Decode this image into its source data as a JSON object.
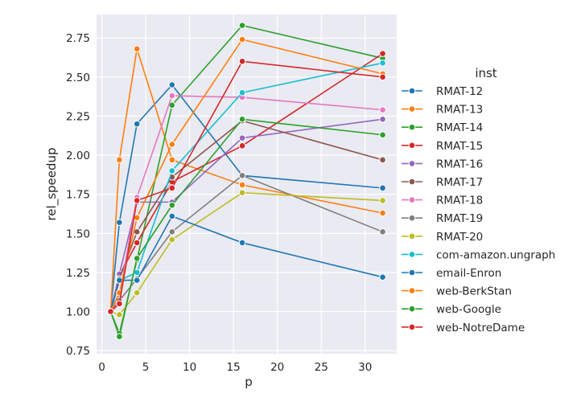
{
  "chart_data": {
    "type": "line",
    "xlabel": "p",
    "ylabel": "rel_speedup",
    "xlim": [
      -0.6,
      33.6
    ],
    "ylim": [
      0.73,
      2.9
    ],
    "xticks": [
      0,
      5,
      10,
      15,
      20,
      25,
      30
    ],
    "yticks": [
      0.75,
      1.0,
      1.25,
      1.5,
      1.75,
      2.0,
      2.25,
      2.5,
      2.75
    ],
    "ytick_labels": [
      "0.75",
      "1.00",
      "1.25",
      "1.50",
      "1.75",
      "2.00",
      "2.25",
      "2.50",
      "2.75"
    ],
    "grid": true,
    "legend_title": "inst",
    "legend_position": "right",
    "x": [
      1,
      2,
      4,
      8,
      16,
      32
    ],
    "series": [
      {
        "name": "RMAT-12",
        "color": "#1f77b4",
        "values": [
          1.0,
          1.57,
          2.2,
          2.45,
          1.87,
          1.79
        ]
      },
      {
        "name": "RMAT-13",
        "color": "#ff7f0e",
        "values": [
          1.0,
          1.97,
          2.68,
          1.97,
          1.81,
          1.63
        ]
      },
      {
        "name": "RMAT-14",
        "color": "#2ca02c",
        "values": [
          1.0,
          0.86,
          1.33,
          2.32,
          2.83,
          2.62
        ]
      },
      {
        "name": "RMAT-15",
        "color": "#d62728",
        "values": [
          1.0,
          1.23,
          1.44,
          1.83,
          2.06,
          2.65
        ]
      },
      {
        "name": "RMAT-16",
        "color": "#9467bd",
        "values": [
          1.0,
          1.24,
          1.7,
          1.7,
          2.11,
          2.23
        ]
      },
      {
        "name": "RMAT-17",
        "color": "#8c564b",
        "values": [
          1.0,
          1.21,
          1.51,
          1.86,
          2.22,
          1.97
        ]
      },
      {
        "name": "RMAT-18",
        "color": "#e377c2",
        "values": [
          1.0,
          1.1,
          1.73,
          2.38,
          2.37,
          2.29
        ]
      },
      {
        "name": "RMAT-19",
        "color": "#7f7f7f",
        "values": [
          1.0,
          1.07,
          1.21,
          1.51,
          1.87,
          1.51
        ]
      },
      {
        "name": "RMAT-20",
        "color": "#bcbd22",
        "values": [
          1.0,
          0.98,
          1.12,
          1.46,
          1.76,
          1.71
        ]
      },
      {
        "name": "com-amazon.ungraph",
        "color": "#17becf",
        "values": [
          1.0,
          1.2,
          1.25,
          1.9,
          2.4,
          2.59
        ]
      },
      {
        "name": "email-Enron",
        "color": "#1f77b4",
        "values": [
          1.0,
          1.2,
          1.2,
          1.61,
          1.44,
          1.22
        ]
      },
      {
        "name": "web-BerkStan",
        "color": "#ff7f0e",
        "values": [
          1.0,
          1.12,
          1.6,
          2.07,
          2.74,
          2.52
        ]
      },
      {
        "name": "web-Google",
        "color": "#2ca02c",
        "values": [
          1.0,
          0.84,
          1.34,
          1.68,
          2.23,
          2.13
        ]
      },
      {
        "name": "web-NotreDame",
        "color": "#d62728",
        "values": [
          1.0,
          1.05,
          1.71,
          1.79,
          2.6,
          2.5
        ]
      }
    ]
  }
}
